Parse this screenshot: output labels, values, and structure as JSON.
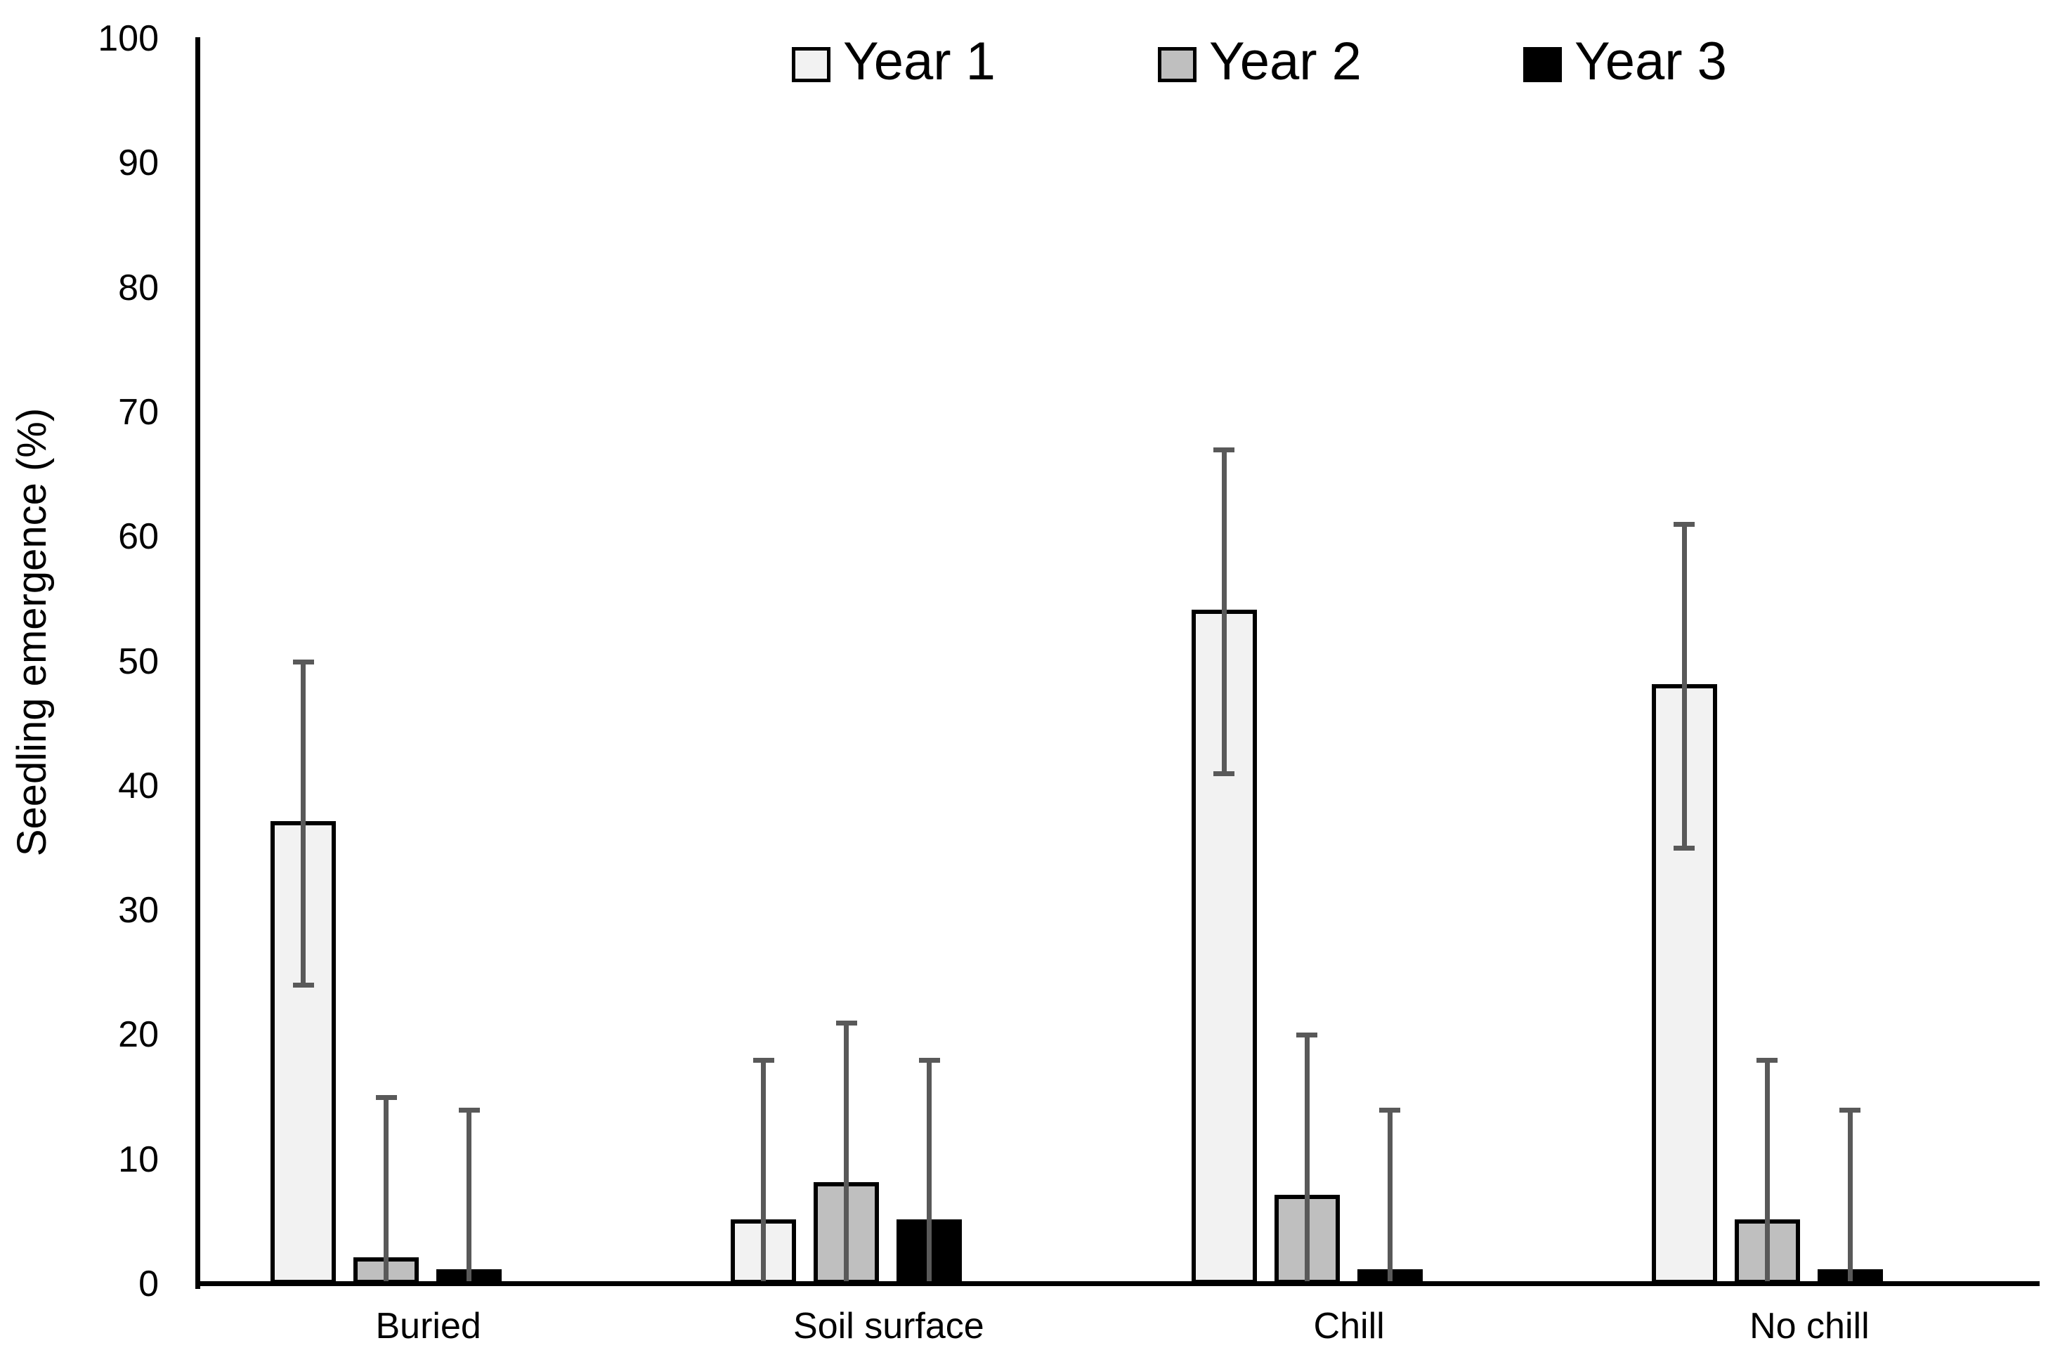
{
  "chart_data": {
    "type": "bar",
    "title": "",
    "xlabel": "",
    "ylabel": "Seedling emergence (%)",
    "ylim": [
      0,
      100
    ],
    "ytick_step": 10,
    "ytick_labels": [
      "0",
      "10",
      "20",
      "30",
      "40",
      "50",
      "60",
      "70",
      "80",
      "90",
      "100"
    ],
    "grid": false,
    "legend_position": "top",
    "categories": [
      "Buried",
      "Soil surface",
      "Chill",
      "No chill"
    ],
    "series": [
      {
        "name": "Year 1",
        "fill": "#F2F2F2",
        "values": [
          37,
          5,
          54,
          48
        ],
        "error_plus": [
          13,
          13,
          13,
          13
        ],
        "error_minus": [
          13,
          13,
          13,
          13
        ],
        "whisker_upper": [
          50,
          18,
          67,
          61
        ],
        "whisker_lower_visible": [
          24,
          null,
          41,
          35
        ]
      },
      {
        "name": "Year 2",
        "fill": "#BFBFBF",
        "values": [
          2,
          8,
          7,
          5
        ],
        "error_plus": [
          13,
          13,
          13,
          13
        ],
        "error_minus": [
          13,
          13,
          13,
          13
        ],
        "whisker_upper": [
          15,
          21,
          20,
          18
        ],
        "whisker_lower_visible": [
          null,
          null,
          null,
          null
        ]
      },
      {
        "name": "Year 3",
        "fill": "#000000",
        "values": [
          1,
          5,
          1,
          1
        ],
        "error_plus": [
          13,
          13,
          13,
          13
        ],
        "error_minus": [
          13,
          13,
          13,
          13
        ],
        "whisker_upper": [
          14,
          18,
          14,
          14
        ],
        "whisker_lower_visible": [
          null,
          null,
          null,
          null
        ]
      }
    ],
    "colors": {
      "bar_border": "#000000",
      "error_bar": "#595959",
      "axis": "#000000",
      "text": "#000000",
      "background": "#ffffff"
    }
  }
}
